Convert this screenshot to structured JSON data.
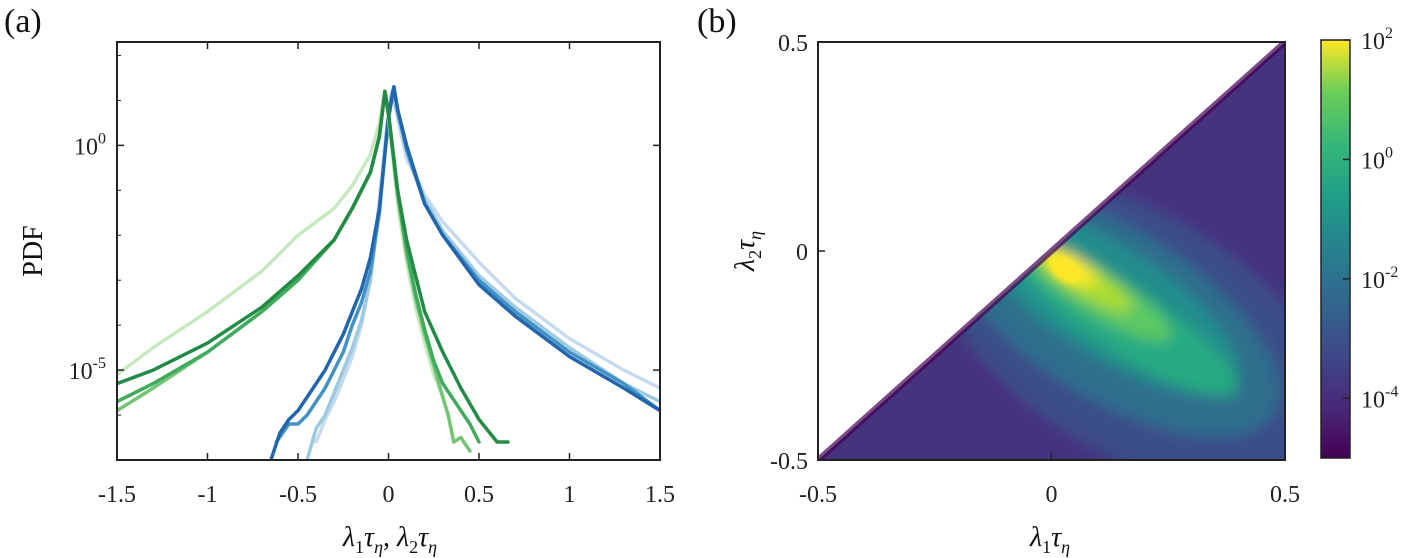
{
  "panels": {
    "a": {
      "label": "(a)"
    },
    "b": {
      "label": "(b)"
    }
  },
  "chart_data": [
    {
      "type": "line",
      "panel": "a",
      "xlabel_parts": [
        "λ",
        "1",
        "τ",
        "η",
        ", ",
        "λ",
        "2",
        "τ",
        "η"
      ],
      "ylabel": "PDF",
      "xlim": [
        -1.5,
        1.5
      ],
      "ylim_log10": [
        -7,
        2.3
      ],
      "yscale": "log",
      "xticks": [
        -1.5,
        -1,
        -0.5,
        0,
        0.5,
        1,
        1.5
      ],
      "xtick_labels": [
        "-1.5",
        "-1",
        "-0.5",
        "0",
        "0.5",
        "1",
        "1.5"
      ],
      "yticks": [
        {
          "base": "10",
          "exp": "0",
          "log": 0
        },
        {
          "base": "10",
          "exp": "-5",
          "log": -5
        }
      ],
      "grid": false,
      "series": [
        {
          "group": "lambda1",
          "color": "#c6dbef",
          "width": 3.5,
          "x": [
            -0.4,
            -0.35,
            -0.3,
            -0.25,
            -0.2,
            -0.15,
            -0.1,
            -0.05,
            0,
            0.02,
            0.05,
            0.1,
            0.2,
            0.3,
            0.5,
            0.7,
            1.0,
            1.3,
            1.5
          ],
          "y": [
            -6.6,
            -6.1,
            -5.7,
            -5.2,
            -4.7,
            -4.0,
            -3.0,
            -1.2,
            0.8,
            1.2,
            0.6,
            -0.3,
            -1.1,
            -1.7,
            -2.6,
            -3.4,
            -4.3,
            -5.0,
            -5.4
          ]
        },
        {
          "group": "lambda1",
          "color": "#9ecae1",
          "width": 3.5,
          "x": [
            -0.45,
            -0.4,
            -0.35,
            -0.3,
            -0.25,
            -0.2,
            -0.15,
            -0.1,
            -0.05,
            0,
            0.02,
            0.05,
            0.1,
            0.2,
            0.3,
            0.5,
            0.7,
            1.0,
            1.3,
            1.5
          ],
          "y": [
            -7.0,
            -6.3,
            -6.0,
            -5.5,
            -5.0,
            -4.5,
            -3.9,
            -3.0,
            -1.4,
            0.7,
            1.2,
            0.7,
            -0.1,
            -1.2,
            -1.9,
            -2.9,
            -3.6,
            -4.5,
            -5.3,
            -5.7
          ]
        },
        {
          "group": "lambda1",
          "color": "#4292c6",
          "width": 3.5,
          "x": [
            -0.62,
            -0.55,
            -0.5,
            -0.45,
            -0.4,
            -0.35,
            -0.3,
            -0.25,
            -0.2,
            -0.15,
            -0.1,
            -0.05,
            0,
            0.03,
            0.05,
            0.1,
            0.2,
            0.3,
            0.5,
            0.7,
            1.0,
            1.3,
            1.5
          ],
          "y": [
            -6.6,
            -6.2,
            -6.2,
            -6.0,
            -5.7,
            -5.4,
            -5.0,
            -4.6,
            -4.0,
            -3.5,
            -2.8,
            -1.5,
            0.7,
            1.3,
            0.8,
            -0.1,
            -1.3,
            -2.0,
            -3.0,
            -3.7,
            -4.6,
            -5.3,
            -5.9
          ]
        },
        {
          "group": "lambda1",
          "color": "#2166ac",
          "width": 3.5,
          "x": [
            -0.65,
            -0.6,
            -0.55,
            -0.5,
            -0.45,
            -0.4,
            -0.35,
            -0.3,
            -0.25,
            -0.2,
            -0.15,
            -0.1,
            -0.05,
            0,
            0.03,
            0.05,
            0.1,
            0.2,
            0.3,
            0.5,
            0.7,
            1.0,
            1.3,
            1.5
          ],
          "y": [
            -7.0,
            -6.4,
            -6.1,
            -5.9,
            -5.6,
            -5.3,
            -5.0,
            -4.6,
            -4.2,
            -3.7,
            -3.2,
            -2.5,
            -1.4,
            0.6,
            1.3,
            0.8,
            0.0,
            -1.3,
            -2.0,
            -3.1,
            -3.8,
            -4.7,
            -5.4,
            -5.9
          ]
        },
        {
          "group": "lambda2",
          "color": "#c7e9c0",
          "width": 3.5,
          "x": [
            -1.5,
            -1.3,
            -1.0,
            -0.7,
            -0.5,
            -0.3,
            -0.2,
            -0.1,
            -0.05,
            -0.02,
            0,
            0.05,
            0.1,
            0.15,
            0.2,
            0.25,
            0.3
          ],
          "y": [
            -5.1,
            -4.5,
            -3.7,
            -2.8,
            -2.0,
            -1.4,
            -0.9,
            -0.2,
            0.5,
            1.2,
            0.6,
            -1.3,
            -2.6,
            -3.6,
            -4.4,
            -5.1,
            -5.6
          ]
        },
        {
          "group": "lambda2",
          "color": "#74c476",
          "width": 3.5,
          "x": [
            -1.5,
            -1.3,
            -1.0,
            -0.7,
            -0.5,
            -0.3,
            -0.2,
            -0.1,
            -0.05,
            -0.02,
            0,
            0.05,
            0.1,
            0.15,
            0.2,
            0.25,
            0.3,
            0.33,
            0.36,
            0.4,
            0.45
          ],
          "y": [
            -5.9,
            -5.4,
            -4.6,
            -3.7,
            -3.0,
            -2.1,
            -1.4,
            -0.6,
            0.2,
            1.2,
            0.7,
            -1.1,
            -2.4,
            -3.4,
            -4.2,
            -4.9,
            -5.6,
            -6.0,
            -6.6,
            -6.5,
            -6.8
          ]
        },
        {
          "group": "lambda2",
          "color": "#41ab5d",
          "width": 3.5,
          "x": [
            -1.5,
            -1.3,
            -1.0,
            -0.7,
            -0.5,
            -0.3,
            -0.2,
            -0.1,
            -0.05,
            -0.02,
            0,
            0.05,
            0.1,
            0.15,
            0.2,
            0.25,
            0.3,
            0.35,
            0.4,
            0.45,
            0.5
          ],
          "y": [
            -5.7,
            -5.3,
            -4.6,
            -3.7,
            -3.0,
            -2.1,
            -1.4,
            -0.6,
            0.2,
            1.2,
            0.7,
            -1.0,
            -2.3,
            -3.3,
            -4.1,
            -4.8,
            -5.3,
            -5.6,
            -5.9,
            -6.2,
            -6.6
          ]
        },
        {
          "group": "lambda2",
          "color": "#238b45",
          "width": 3.5,
          "x": [
            -1.5,
            -1.3,
            -1.0,
            -0.7,
            -0.5,
            -0.3,
            -0.2,
            -0.1,
            -0.05,
            -0.02,
            0,
            0.05,
            0.1,
            0.15,
            0.2,
            0.3,
            0.4,
            0.5,
            0.6,
            0.66
          ],
          "y": [
            -5.3,
            -5.0,
            -4.4,
            -3.6,
            -2.9,
            -2.1,
            -1.4,
            -0.6,
            0.2,
            1.2,
            0.7,
            -1.0,
            -2.1,
            -2.9,
            -3.7,
            -4.6,
            -5.4,
            -6.1,
            -6.6,
            -6.6
          ]
        }
      ]
    },
    {
      "type": "heatmap",
      "panel": "b",
      "xlabel_parts": [
        "λ",
        "1",
        "τ",
        "η"
      ],
      "ylabel_parts": [
        "λ",
        "2",
        "τ",
        "η"
      ],
      "xlim": [
        -0.5,
        0.5
      ],
      "ylim": [
        -0.5,
        0.5
      ],
      "xticks": [
        -0.5,
        0,
        0.5
      ],
      "xtick_labels": [
        "-0.5",
        "0",
        "0.5"
      ],
      "yticks": [
        -0.5,
        0,
        0.5
      ],
      "ytick_labels": [
        "-0.5",
        "0",
        "0.5"
      ],
      "domain": "lambda2 <= lambda1",
      "colormap": "viridis",
      "colorbar": {
        "scale": "log",
        "range_log10": [
          -5,
          2
        ],
        "ticks": [
          {
            "base": "10",
            "exp": "2",
            "log": 2
          },
          {
            "base": "10",
            "exp": "0",
            "log": 0
          },
          {
            "base": "10",
            "exp": "-2",
            "log": -2
          },
          {
            "base": "10",
            "exp": "-4",
            "log": -4
          }
        ]
      },
      "peak": {
        "lambda1": 0.02,
        "lambda2": -0.02,
        "value_log10": 2
      }
    }
  ]
}
